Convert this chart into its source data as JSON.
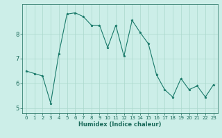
{
  "x": [
    0,
    1,
    2,
    3,
    4,
    5,
    6,
    7,
    8,
    9,
    10,
    11,
    12,
    13,
    14,
    15,
    16,
    17,
    18,
    19,
    20,
    21,
    22,
    23
  ],
  "y": [
    6.5,
    6.4,
    6.3,
    5.2,
    7.2,
    8.8,
    8.85,
    8.7,
    8.35,
    8.35,
    7.45,
    8.35,
    7.1,
    8.55,
    8.05,
    7.6,
    6.35,
    5.75,
    5.45,
    6.2,
    5.75,
    5.9,
    5.45,
    5.95
  ],
  "xlabel": "Humidex (Indice chaleur)",
  "bg_color": "#cceee8",
  "grid_color": "#aad8cc",
  "line_color": "#1a7a6a",
  "tick_color": "#1a6a5a",
  "ylim": [
    4.8,
    9.2
  ],
  "xlim": [
    -0.5,
    23.5
  ],
  "yticks": [
    5,
    6,
    7,
    8
  ],
  "xticks": [
    0,
    1,
    2,
    3,
    4,
    5,
    6,
    7,
    8,
    9,
    10,
    11,
    12,
    13,
    14,
    15,
    16,
    17,
    18,
    19,
    20,
    21,
    22,
    23
  ]
}
